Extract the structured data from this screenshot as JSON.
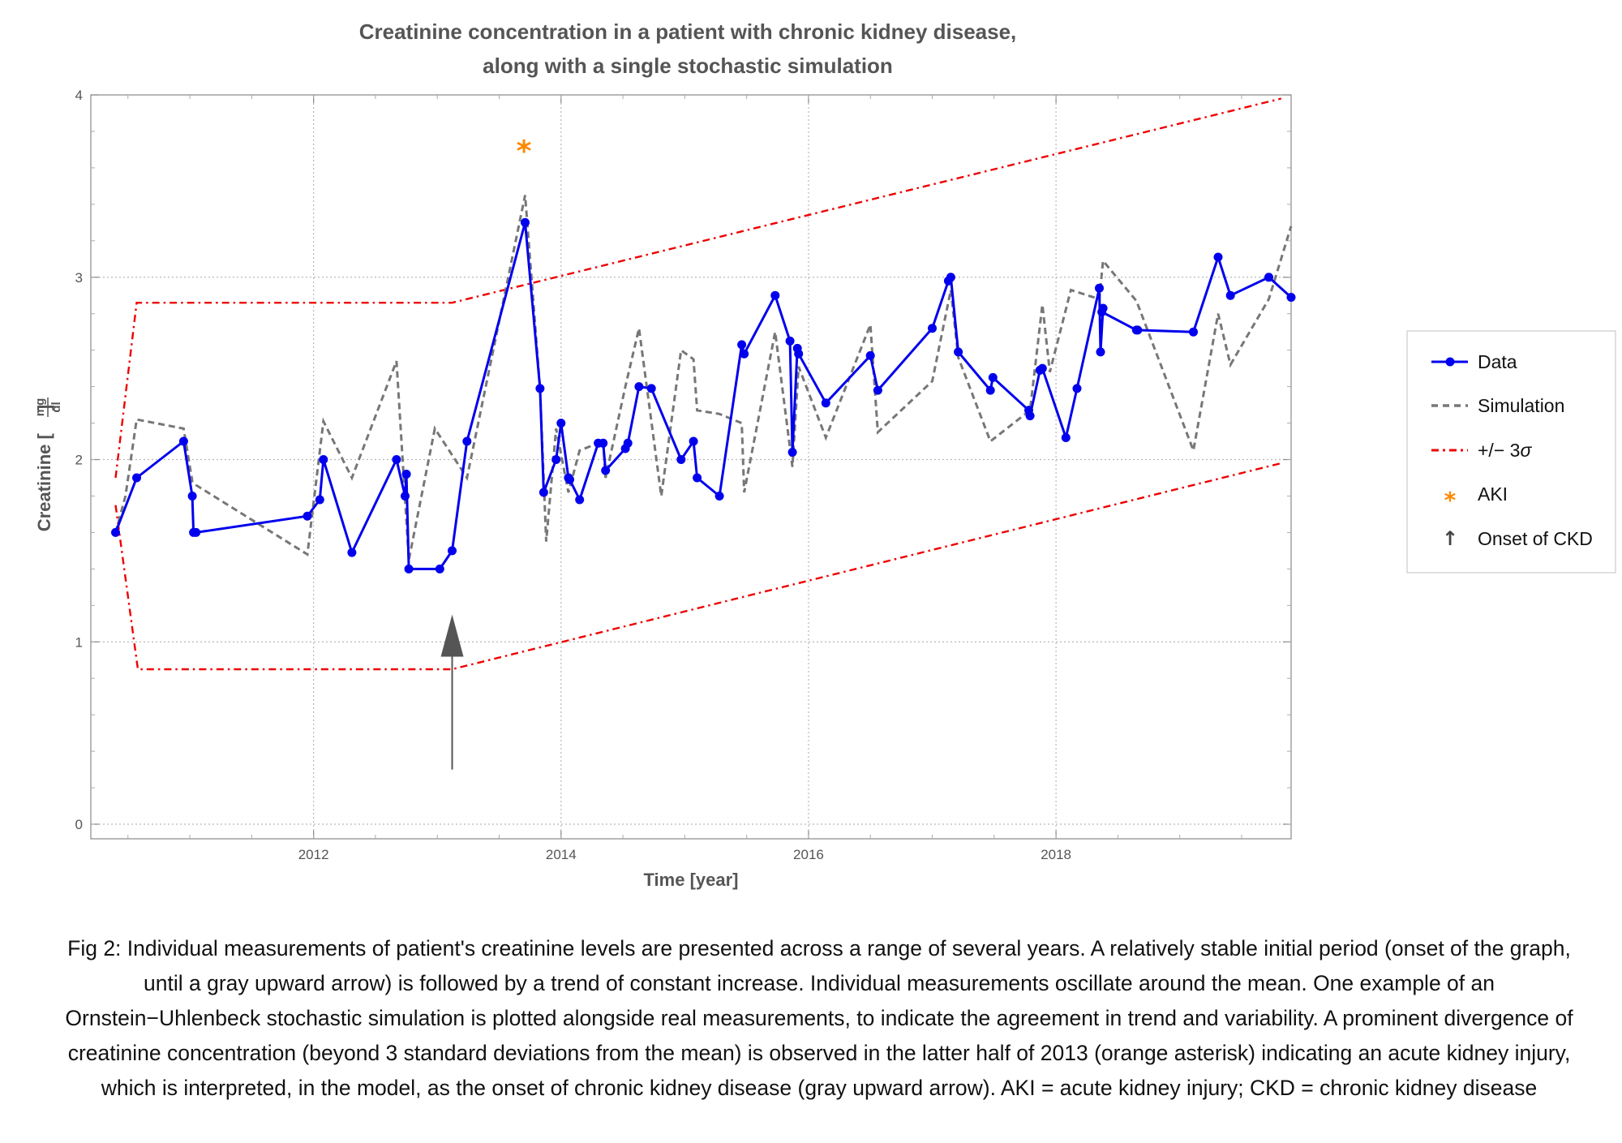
{
  "chart_data": {
    "type": "line",
    "title": "Creatinine concentration in a patient with chronic kidney disease,",
    "subtitle": "along with a single stochastic simulation",
    "xlabel": "Time [year]",
    "ylabel_main": "Creatinine",
    "ylabel_unit_num": "mg",
    "ylabel_unit_den": "dl",
    "xlim": [
      2010.2,
      2019.9
    ],
    "ylim": [
      -0.08,
      4.0
    ],
    "x_ticks": [
      2012,
      2014,
      2016,
      2018
    ],
    "x_tick_labels": [
      "2012",
      "2014",
      "2016",
      "2018"
    ],
    "y_ticks": [
      0,
      1,
      2,
      3,
      4
    ],
    "y_tick_labels": [
      "0",
      "1",
      "2",
      "3",
      "4"
    ],
    "grid": true,
    "legend_position": "right",
    "series": [
      {
        "name": "Data",
        "style": "solid-markers",
        "color": "#0000ee",
        "points": [
          [
            2010.4,
            1.6
          ],
          [
            2010.57,
            1.9
          ],
          [
            2010.95,
            2.1
          ],
          [
            2011.02,
            1.8
          ],
          [
            2011.03,
            1.6
          ],
          [
            2011.05,
            1.6
          ],
          [
            2011.95,
            1.69
          ],
          [
            2012.05,
            1.78
          ],
          [
            2012.08,
            2.0
          ],
          [
            2012.31,
            1.49
          ],
          [
            2012.67,
            2.0
          ],
          [
            2012.74,
            1.8
          ],
          [
            2012.75,
            1.92
          ],
          [
            2012.77,
            1.4
          ],
          [
            2013.02,
            1.4
          ],
          [
            2013.12,
            1.5
          ],
          [
            2013.24,
            2.1
          ],
          [
            2013.71,
            3.3
          ],
          [
            2013.83,
            2.39
          ],
          [
            2013.86,
            1.82
          ],
          [
            2013.96,
            2.0
          ],
          [
            2014.0,
            2.2
          ],
          [
            2014.06,
            1.9
          ],
          [
            2014.07,
            1.89
          ],
          [
            2014.15,
            1.78
          ],
          [
            2014.3,
            2.09
          ],
          [
            2014.34,
            2.09
          ],
          [
            2014.36,
            1.94
          ],
          [
            2014.52,
            2.06
          ],
          [
            2014.54,
            2.09
          ],
          [
            2014.63,
            2.4
          ],
          [
            2014.73,
            2.39
          ],
          [
            2014.97,
            2.0
          ],
          [
            2015.07,
            2.1
          ],
          [
            2015.1,
            1.9
          ],
          [
            2015.28,
            1.8
          ],
          [
            2015.46,
            2.63
          ],
          [
            2015.48,
            2.58
          ],
          [
            2015.73,
            2.9
          ],
          [
            2015.85,
            2.65
          ],
          [
            2015.87,
            2.04
          ],
          [
            2015.91,
            2.61
          ],
          [
            2015.92,
            2.58
          ],
          [
            2016.14,
            2.31
          ],
          [
            2016.5,
            2.57
          ],
          [
            2016.56,
            2.38
          ],
          [
            2017.0,
            2.72
          ],
          [
            2017.13,
            2.98
          ],
          [
            2017.15,
            3.0
          ],
          [
            2017.21,
            2.59
          ],
          [
            2017.47,
            2.38
          ],
          [
            2017.49,
            2.45
          ],
          [
            2017.78,
            2.27
          ],
          [
            2017.79,
            2.24
          ],
          [
            2017.87,
            2.49
          ],
          [
            2017.89,
            2.5
          ],
          [
            2018.08,
            2.12
          ],
          [
            2018.17,
            2.39
          ],
          [
            2018.35,
            2.94
          ],
          [
            2018.36,
            2.59
          ],
          [
            2018.38,
            2.83
          ],
          [
            2018.37,
            2.81
          ],
          [
            2018.65,
            2.71
          ],
          [
            2018.66,
            2.71
          ],
          [
            2019.11,
            2.7
          ],
          [
            2019.31,
            3.11
          ],
          [
            2019.41,
            2.9
          ],
          [
            2019.72,
            3.0
          ],
          [
            2019.9,
            2.89
          ]
        ]
      },
      {
        "name": "Simulation",
        "style": "dashed",
        "color": "#777777",
        "points": [
          [
            2010.4,
            1.6
          ],
          [
            2010.48,
            1.8
          ],
          [
            2010.57,
            2.22
          ],
          [
            2010.95,
            2.17
          ],
          [
            2011.02,
            1.88
          ],
          [
            2011.05,
            1.86
          ],
          [
            2011.95,
            1.48
          ],
          [
            2012.08,
            2.21
          ],
          [
            2012.31,
            1.9
          ],
          [
            2012.67,
            2.54
          ],
          [
            2012.77,
            1.45
          ],
          [
            2012.98,
            2.17
          ],
          [
            2013.24,
            1.9
          ],
          [
            2013.71,
            3.45
          ],
          [
            2013.83,
            2.39
          ],
          [
            2013.88,
            1.55
          ],
          [
            2013.96,
            2.17
          ],
          [
            2014.06,
            1.82
          ],
          [
            2014.15,
            2.05
          ],
          [
            2014.34,
            2.1
          ],
          [
            2014.36,
            1.9
          ],
          [
            2014.52,
            2.4
          ],
          [
            2014.63,
            2.72
          ],
          [
            2014.81,
            1.8
          ],
          [
            2014.97,
            2.6
          ],
          [
            2015.07,
            2.55
          ],
          [
            2015.1,
            2.27
          ],
          [
            2015.28,
            2.25
          ],
          [
            2015.46,
            2.2
          ],
          [
            2015.48,
            1.82
          ],
          [
            2015.73,
            2.7
          ],
          [
            2015.87,
            1.96
          ],
          [
            2015.92,
            2.51
          ],
          [
            2016.14,
            2.12
          ],
          [
            2016.5,
            2.74
          ],
          [
            2016.56,
            2.15
          ],
          [
            2017.0,
            2.43
          ],
          [
            2017.15,
            2.93
          ],
          [
            2017.21,
            2.56
          ],
          [
            2017.47,
            2.1
          ],
          [
            2017.79,
            2.27
          ],
          [
            2017.89,
            2.85
          ],
          [
            2017.95,
            2.48
          ],
          [
            2018.12,
            2.93
          ],
          [
            2018.35,
            2.88
          ],
          [
            2018.38,
            3.09
          ],
          [
            2018.65,
            2.87
          ],
          [
            2019.11,
            2.05
          ],
          [
            2019.31,
            2.8
          ],
          [
            2019.41,
            2.52
          ],
          [
            2019.72,
            2.88
          ],
          [
            2019.9,
            3.28
          ]
        ]
      },
      {
        "name": "+/− 3",
        "name_symbol": "σ",
        "style": "dash-dot",
        "color": "#ee0000",
        "upper": [
          [
            2010.4,
            1.9
          ],
          [
            2010.57,
            2.86
          ],
          [
            2013.12,
            2.86
          ],
          [
            2019.82,
            3.98
          ]
        ],
        "lower": [
          [
            2010.4,
            1.75
          ],
          [
            2010.58,
            0.85
          ],
          [
            2013.12,
            0.85
          ],
          [
            2019.82,
            1.98
          ]
        ]
      }
    ],
    "annotations": [
      {
        "name": "AKI",
        "symbol": "*",
        "color": "#ff8800",
        "x": 2013.7,
        "y": 3.7
      },
      {
        "name": "Onset of CKD",
        "symbol": "↑",
        "color": "#555555",
        "x": 2013.12,
        "y_from": 0.3,
        "y_to": 1.15
      }
    ]
  },
  "caption": "Fig 2: Individual measurements of patient's creatinine levels are presented across a range of several years. A relatively stable initial period (onset of the graph, until a gray upward arrow) is followed by a trend of constant increase. Individual measurements oscillate around the mean. One example of an Ornstein−Uhlenbeck stochastic simulation is plotted alongside real measurements, to indicate the agreement in trend and variability. A prominent divergence of creatinine concentration (beyond 3 standard deviations from the mean) is observed in the latter half of 2013 (orange asterisk) indicating an acute kidney injury, which is interpreted, in the model, as the onset of chronic kidney disease (gray upward arrow).  AKI = acute kidney injury; CKD = chronic kidney disease"
}
